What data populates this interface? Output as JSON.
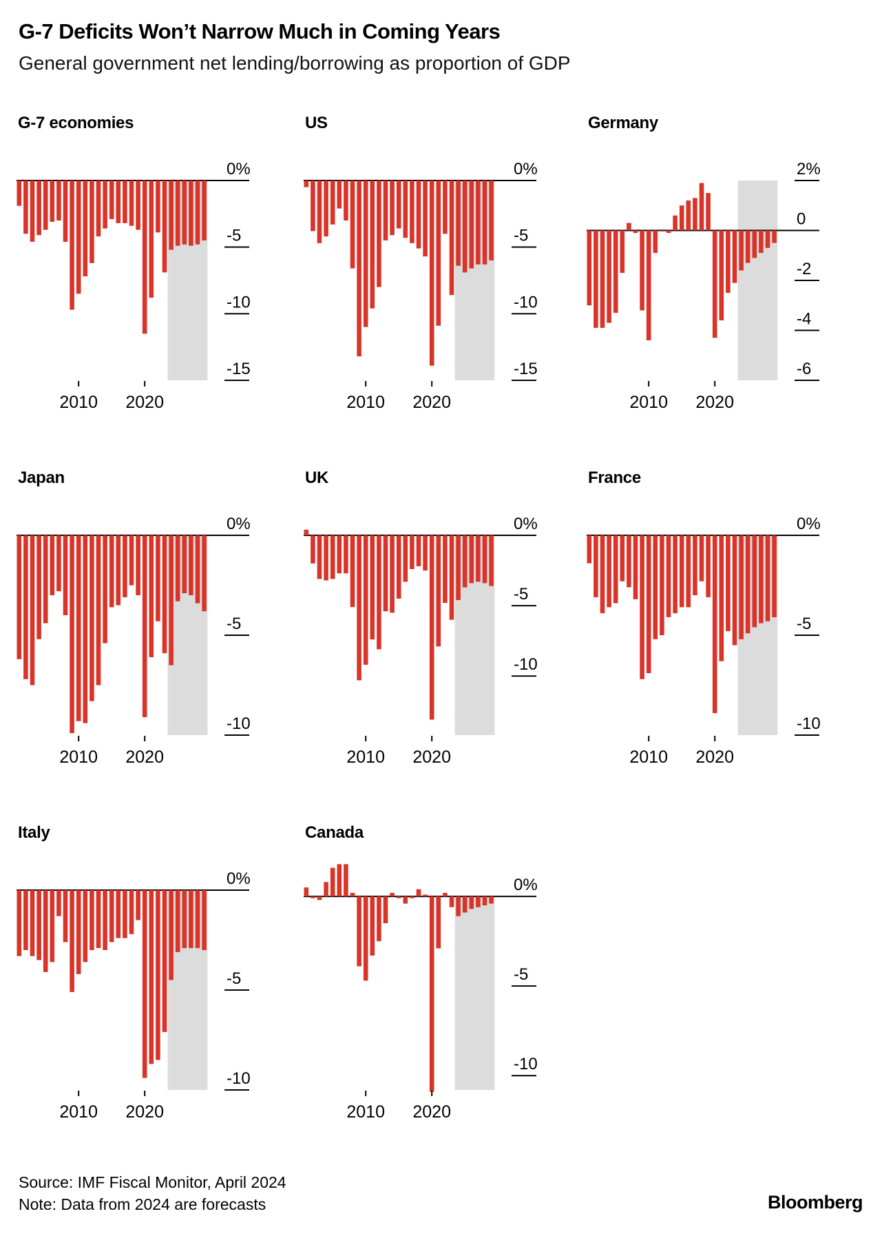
{
  "header": {
    "title": "G-7 Deficits Won’t Narrow Much in Coming Years",
    "subtitle": "General government net lending/borrowing as proportion of GDP"
  },
  "years": [
    2001,
    2002,
    2003,
    2004,
    2005,
    2006,
    2007,
    2008,
    2009,
    2010,
    2011,
    2012,
    2013,
    2014,
    2015,
    2016,
    2017,
    2018,
    2019,
    2020,
    2021,
    2022,
    2023,
    2024,
    2025,
    2026,
    2027,
    2028,
    2029
  ],
  "forecast_start_year": 2024,
  "x_tick_years": [
    2010,
    2020
  ],
  "colors": {
    "bar": "#d9342a",
    "forecast_band": "#dcdcdc",
    "axis": "#000000",
    "text": "#000000"
  },
  "chart_data": [
    {
      "type": "bar",
      "title": "G-7 economies",
      "values": [
        -1.9,
        -4.0,
        -4.6,
        -4.1,
        -3.7,
        -3.1,
        -3.0,
        -4.6,
        -9.7,
        -8.5,
        -7.2,
        -6.2,
        -4.2,
        -3.6,
        -2.9,
        -3.2,
        -3.2,
        -3.4,
        -3.7,
        -11.5,
        -8.8,
        -3.9,
        -6.9,
        -5.2,
        -4.9,
        -4.8,
        -4.9,
        -4.8,
        -4.5
      ],
      "ylim": [
        -15,
        0
      ],
      "y_ticks": [
        {
          "value": 0,
          "label": "0%"
        },
        {
          "value": -5,
          "label": "-5"
        },
        {
          "value": -10,
          "label": "-10"
        },
        {
          "value": -15,
          "label": "-15"
        }
      ]
    },
    {
      "type": "bar",
      "title": "US",
      "values": [
        -0.5,
        -3.8,
        -4.7,
        -4.2,
        -3.3,
        -2.1,
        -3.0,
        -6.6,
        -13.2,
        -11.0,
        -9.6,
        -8.0,
        -4.5,
        -4.1,
        -3.6,
        -4.3,
        -4.7,
        -5.1,
        -5.7,
        -13.9,
        -10.9,
        -4.0,
        -8.6,
        -6.4,
        -6.9,
        -6.6,
        -6.3,
        -6.3,
        -6.0
      ],
      "ylim": [
        -15,
        0
      ],
      "y_ticks": [
        {
          "value": 0,
          "label": "0%"
        },
        {
          "value": -5,
          "label": "-5"
        },
        {
          "value": -10,
          "label": "-10"
        },
        {
          "value": -15,
          "label": "-15"
        }
      ]
    },
    {
      "type": "bar",
      "title": "Germany",
      "values": [
        -3.0,
        -3.9,
        -3.9,
        -3.7,
        -3.3,
        -1.7,
        0.3,
        -0.1,
        -3.2,
        -4.4,
        -0.9,
        0.0,
        -0.1,
        0.6,
        1.0,
        1.2,
        1.3,
        1.9,
        1.5,
        -4.3,
        -3.6,
        -2.5,
        -2.1,
        -1.6,
        -1.3,
        -1.1,
        -0.9,
        -0.7,
        -0.5
      ],
      "ylim": [
        -6,
        2
      ],
      "y_ticks": [
        {
          "value": 2,
          "label": "2%"
        },
        {
          "value": 0,
          "label": "0"
        },
        {
          "value": -2,
          "label": "-2"
        },
        {
          "value": -4,
          "label": "-4"
        },
        {
          "value": -6,
          "label": "-6"
        }
      ]
    },
    {
      "type": "bar",
      "title": "Japan",
      "values": [
        -6.2,
        -7.2,
        -7.5,
        -5.2,
        -4.4,
        -3.0,
        -2.8,
        -4.0,
        -9.9,
        -9.3,
        -9.4,
        -8.3,
        -7.5,
        -5.4,
        -3.6,
        -3.5,
        -3.1,
        -2.5,
        -3.0,
        -9.1,
        -6.1,
        -4.3,
        -5.9,
        -6.5,
        -3.3,
        -2.9,
        -3.0,
        -3.4,
        -3.8
      ],
      "ylim": [
        -10,
        0
      ],
      "y_ticks": [
        {
          "value": 0,
          "label": "0%"
        },
        {
          "value": -5,
          "label": "-5"
        },
        {
          "value": -10,
          "label": "-10"
        }
      ]
    },
    {
      "type": "bar",
      "title": "UK",
      "values": [
        0.4,
        -2.0,
        -3.1,
        -3.2,
        -3.1,
        -2.7,
        -2.7,
        -5.1,
        -10.3,
        -9.2,
        -7.4,
        -8.1,
        -5.4,
        -5.5,
        -4.5,
        -3.3,
        -2.4,
        -2.2,
        -2.5,
        -13.1,
        -7.9,
        -4.8,
        -6.0,
        -4.6,
        -3.7,
        -3.4,
        -3.3,
        -3.4,
        -3.6
      ],
      "ylim": [
        -14.2,
        0
      ],
      "y_ticks": [
        {
          "value": 0,
          "label": "0%"
        },
        {
          "value": -5,
          "label": "-5"
        },
        {
          "value": -10,
          "label": "-10"
        }
      ]
    },
    {
      "type": "bar",
      "title": "France",
      "values": [
        -1.4,
        -3.1,
        -3.9,
        -3.6,
        -3.4,
        -2.3,
        -2.6,
        -3.2,
        -7.2,
        -6.9,
        -5.2,
        -5.0,
        -4.1,
        -3.9,
        -3.6,
        -3.6,
        -3.0,
        -2.3,
        -3.1,
        -8.9,
        -6.3,
        -4.8,
        -5.5,
        -5.2,
        -4.9,
        -4.6,
        -4.4,
        -4.3,
        -4.1
      ],
      "ylim": [
        -10,
        0
      ],
      "y_ticks": [
        {
          "value": 0,
          "label": "0%"
        },
        {
          "value": -5,
          "label": "-5"
        },
        {
          "value": -10,
          "label": "-10"
        }
      ]
    },
    {
      "type": "bar",
      "title": "Italy",
      "values": [
        -3.3,
        -3.0,
        -3.3,
        -3.5,
        -4.1,
        -3.6,
        -1.3,
        -2.6,
        -5.1,
        -4.2,
        -3.6,
        -3.0,
        -2.9,
        -3.0,
        -2.6,
        -2.4,
        -2.4,
        -2.2,
        -1.5,
        -9.4,
        -8.7,
        -8.5,
        -7.1,
        -4.5,
        -3.1,
        -2.9,
        -2.9,
        -2.9,
        -3.0
      ],
      "ylim": [
        -10,
        0
      ],
      "y_ticks": [
        {
          "value": 0,
          "label": "0%"
        },
        {
          "value": -5,
          "label": "-5"
        },
        {
          "value": -10,
          "label": "-10"
        }
      ]
    },
    {
      "type": "bar",
      "title": "Canada",
      "values": [
        0.5,
        -0.1,
        -0.2,
        0.8,
        1.6,
        1.8,
        1.8,
        0.2,
        -3.9,
        -4.7,
        -3.3,
        -2.5,
        -1.5,
        0.2,
        -0.1,
        -0.4,
        -0.1,
        0.4,
        0.1,
        -10.9,
        -2.9,
        0.2,
        -0.6,
        -1.1,
        -0.9,
        -0.7,
        -0.6,
        -0.5,
        -0.4
      ],
      "ylim": [
        -10.8,
        0.35
      ],
      "band_top_at_zero": true,
      "y_ticks": [
        {
          "value": 0,
          "label": "0%"
        },
        {
          "value": -5,
          "label": "-5"
        },
        {
          "value": -10,
          "label": "-10"
        }
      ]
    }
  ],
  "footer": {
    "source": "Source: IMF Fiscal Monitor, April 2024",
    "note": "Note: Data from 2024 are forecasts",
    "brand": "Bloomberg"
  }
}
